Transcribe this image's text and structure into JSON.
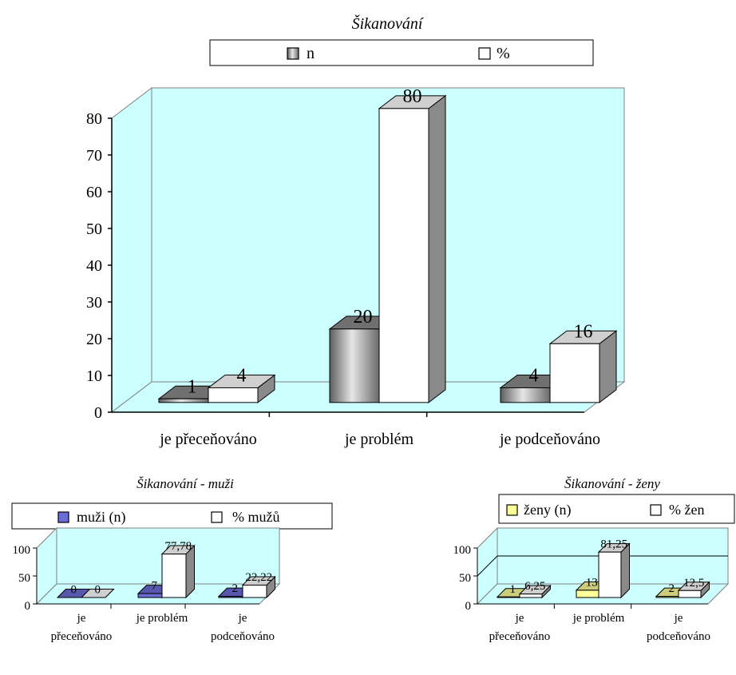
{
  "charts": [
    {
      "type": "bar",
      "title": "Šikanování",
      "categories": [
        "je přeceňováno",
        "je problém",
        "je podceňováno"
      ],
      "series": [
        {
          "name": "n",
          "values": [
            1,
            20,
            4
          ],
          "color": "#8c8c8c"
        },
        {
          "name": "%",
          "values": [
            4,
            80,
            16
          ],
          "color": "#ffffff"
        }
      ],
      "yticks": [
        "0",
        "10",
        "20",
        "30",
        "40",
        "50",
        "60",
        "70",
        "80"
      ],
      "ylim": [
        0,
        80
      ],
      "legend": "top",
      "plot_background": "#ccffff"
    },
    {
      "type": "bar",
      "title": "Šikanování - muži",
      "categories": [
        "je\npřeceňováno",
        "je problém",
        "je\npodceňováno"
      ],
      "series": [
        {
          "name": "muži (n)",
          "values": [
            0,
            7,
            2
          ],
          "labels": [
            "0",
            "7",
            "2"
          ],
          "color": "#6d6dd8"
        },
        {
          "name": "% mužů",
          "values": [
            0,
            77.78,
            22.22
          ],
          "labels": [
            "0",
            "77,78",
            "22,22"
          ],
          "color": "#ffffff"
        }
      ],
      "yticks": [
        "0",
        "50",
        "100"
      ],
      "ylim": [
        0,
        100
      ],
      "legend": "top",
      "plot_background": "#ccffff"
    },
    {
      "type": "bar",
      "title": "Šikanování - ženy",
      "categories": [
        "je\npřeceňováno",
        "je problém",
        "je\npodceňováno"
      ],
      "series": [
        {
          "name": "ženy (n)",
          "values": [
            1,
            13,
            2
          ],
          "labels": [
            "1",
            "13",
            "2"
          ],
          "color": "#ffff99"
        },
        {
          "name": "% žen",
          "values": [
            6.25,
            81.25,
            12.5
          ],
          "labels": [
            "6,25",
            "81,25",
            "12,5"
          ],
          "color": "#ffffff"
        }
      ],
      "yticks": [
        "0",
        "50",
        "100"
      ],
      "ylim": [
        0,
        100
      ],
      "legend": "top",
      "plot_background": "#ccffff"
    }
  ]
}
